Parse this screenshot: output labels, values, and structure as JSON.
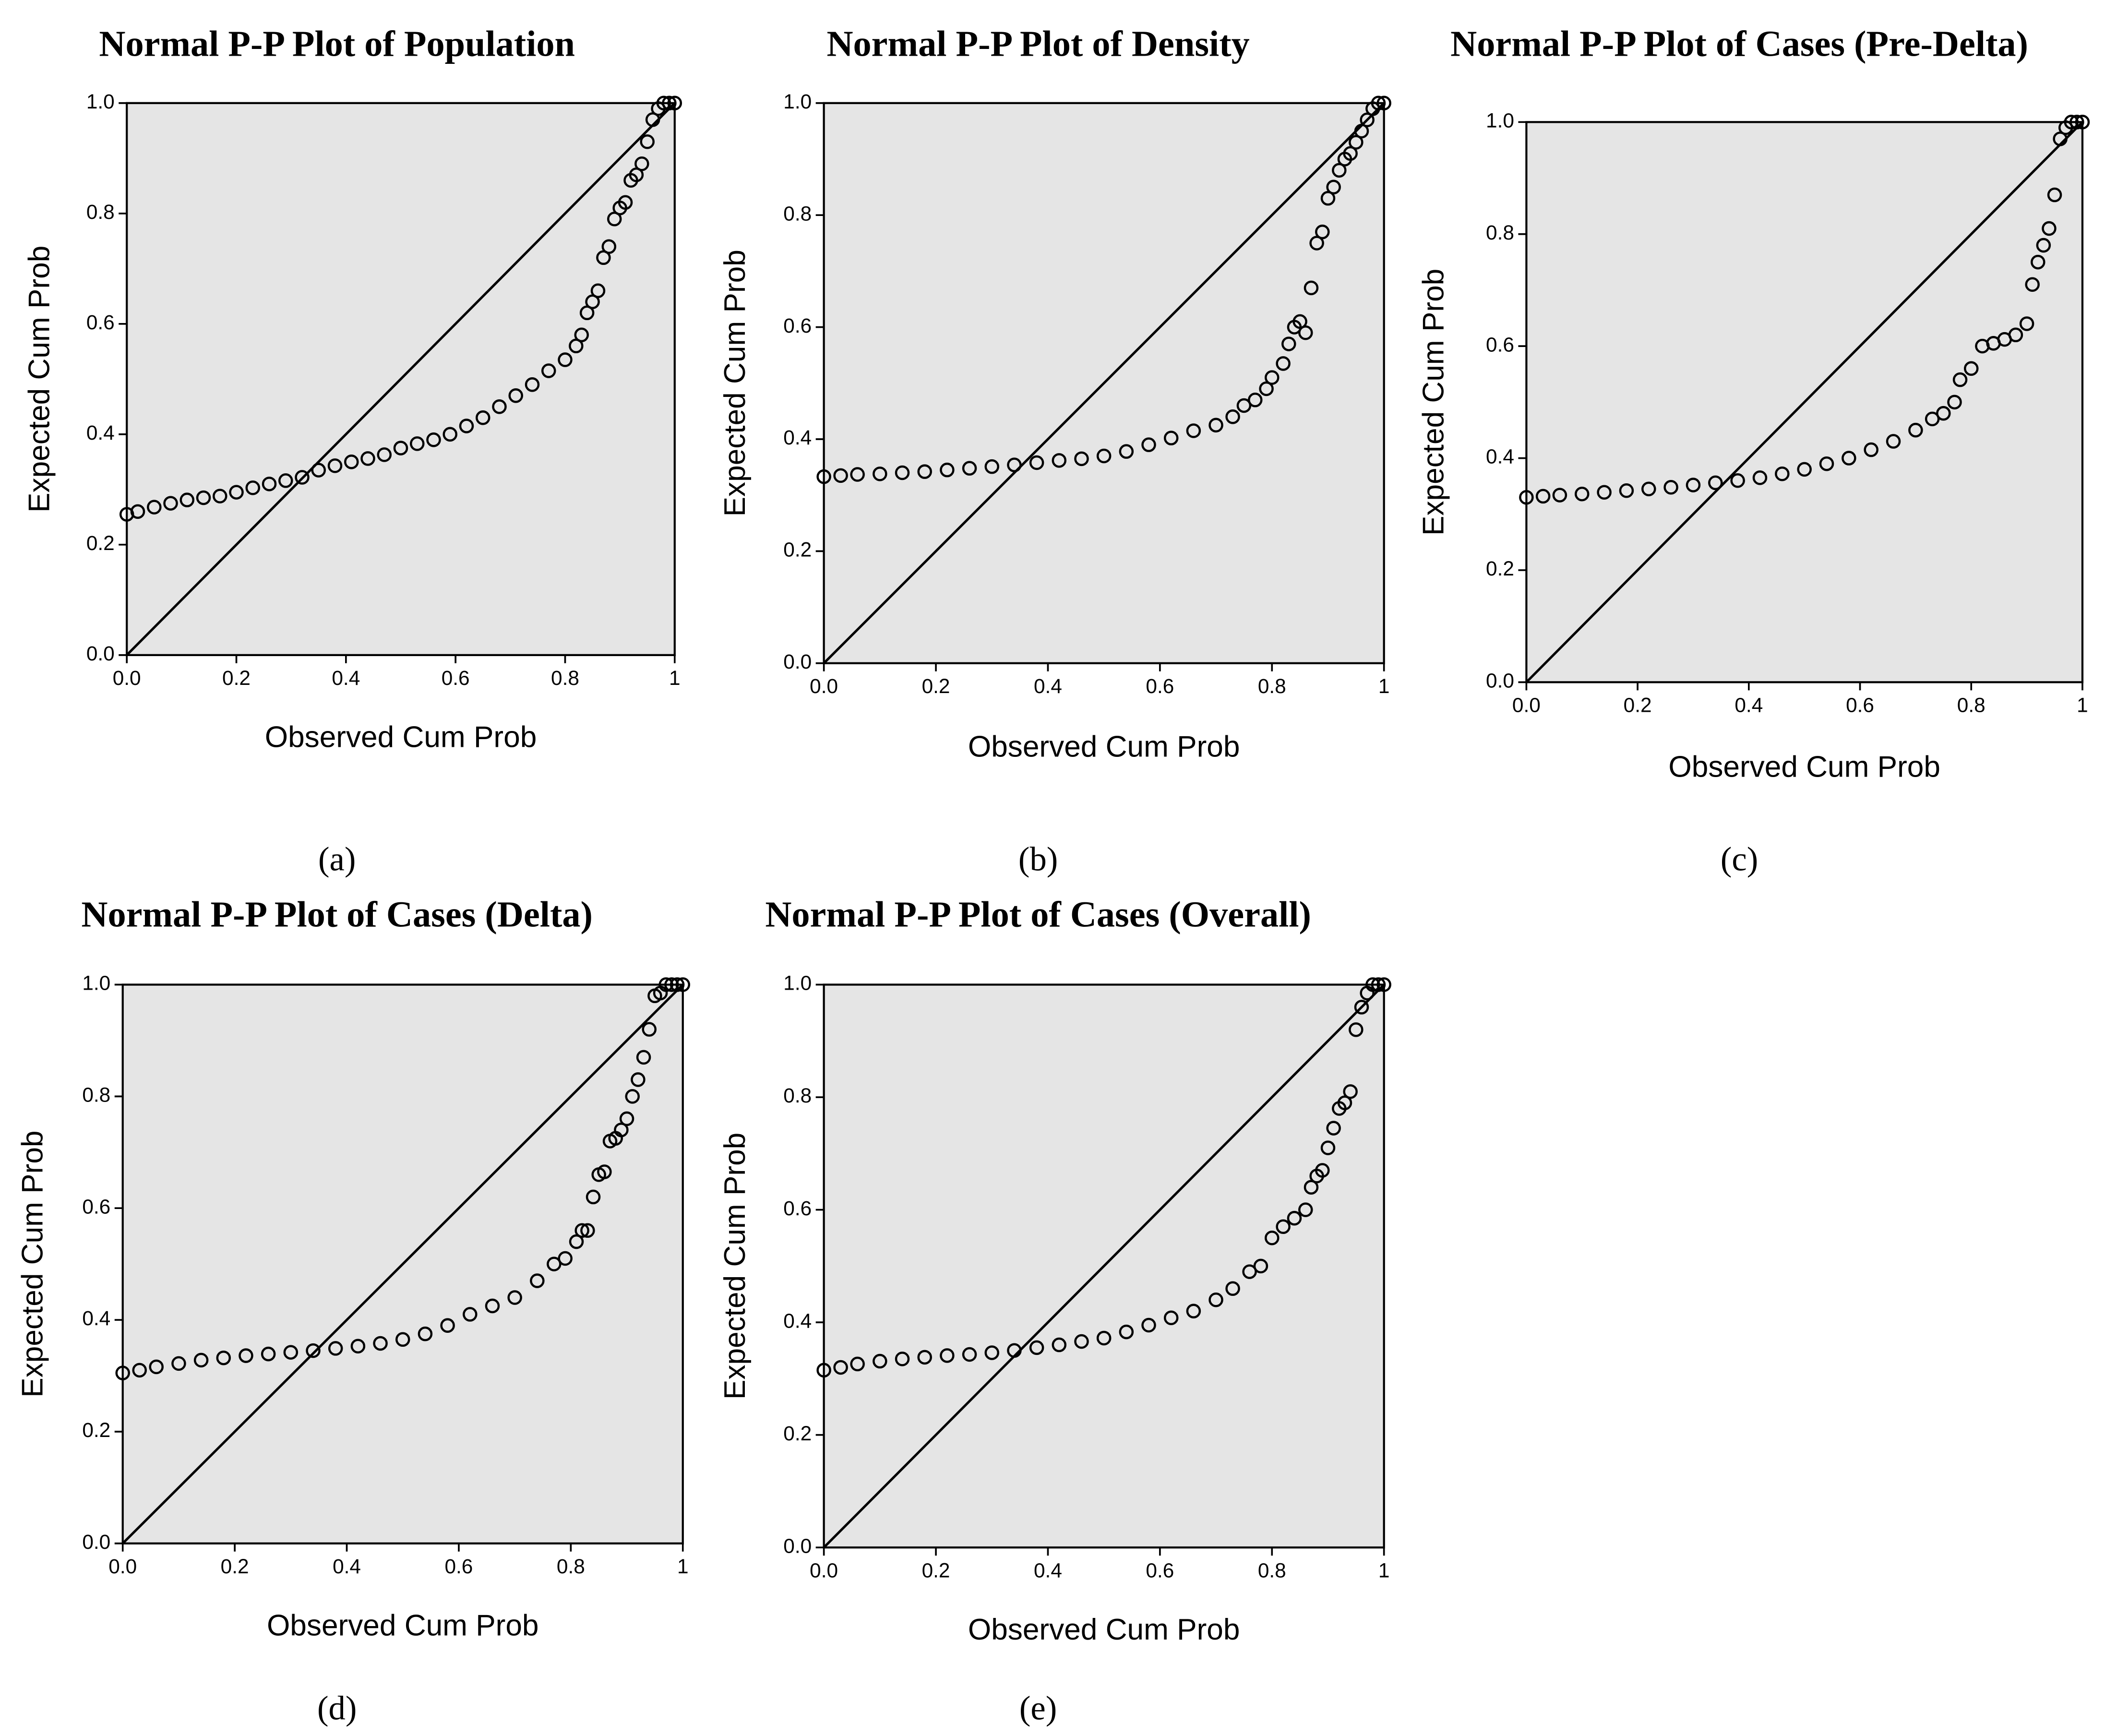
{
  "chart_data": [
    {
      "type": "scatter",
      "title": "Normal P-P Plot of Population",
      "caption": "(a)",
      "xlabel": "Observed Cum Prob",
      "ylabel": "Expected Cum Prob",
      "x": [
        0,
        0.02,
        0.05,
        0.08,
        0.11,
        0.14,
        0.17,
        0.2,
        0.23,
        0.26,
        0.29,
        0.32,
        0.35,
        0.38,
        0.41,
        0.44,
        0.47,
        0.5,
        0.53,
        0.56,
        0.59,
        0.62,
        0.65,
        0.68,
        0.71,
        0.74,
        0.77,
        0.8,
        0.82,
        0.83,
        0.84,
        0.85,
        0.86,
        0.87,
        0.88,
        0.89,
        0.9,
        0.91,
        0.92,
        0.93,
        0.94,
        0.95,
        0.96,
        0.97,
        0.98,
        0.99,
        1
      ],
      "values": [
        0.255,
        0.26,
        0.268,
        0.275,
        0.281,
        0.285,
        0.288,
        0.295,
        0.303,
        0.31,
        0.316,
        0.322,
        0.335,
        0.343,
        0.35,
        0.356,
        0.363,
        0.375,
        0.383,
        0.39,
        0.4,
        0.415,
        0.43,
        0.45,
        0.47,
        0.49,
        0.515,
        0.535,
        0.56,
        0.58,
        0.62,
        0.64,
        0.66,
        0.72,
        0.74,
        0.79,
        0.81,
        0.82,
        0.86,
        0.87,
        0.89,
        0.93,
        0.97,
        0.99,
        1.0,
        1.0,
        1.0
      ],
      "xlim": [
        0,
        1
      ],
      "ylim": [
        0,
        1
      ],
      "xticks": [
        {
          "value": 0,
          "label": "0.0"
        },
        0.2,
        0.4,
        0.6,
        0.8,
        1
      ],
      "yticks": [
        {
          "value": 0,
          "label": "0.0"
        },
        0.2,
        0.4,
        0.6,
        0.8,
        {
          "value": 1,
          "label": "1.0"
        }
      ],
      "color": "#000000",
      "background": "#e5e5e5"
    },
    {
      "type": "scatter",
      "title": "Normal P-P Plot of Density",
      "caption": "(b)",
      "xlabel": "Observed Cum Prob",
      "ylabel": "Expected Cum Prob",
      "x": [
        0,
        0.03,
        0.06,
        0.1,
        0.14,
        0.18,
        0.22,
        0.26,
        0.3,
        0.34,
        0.38,
        0.42,
        0.46,
        0.5,
        0.54,
        0.58,
        0.62,
        0.66,
        0.7,
        0.73,
        0.75,
        0.77,
        0.79,
        0.8,
        0.82,
        0.83,
        0.84,
        0.85,
        0.86,
        0.87,
        0.88,
        0.89,
        0.9,
        0.91,
        0.92,
        0.93,
        0.94,
        0.95,
        0.96,
        0.97,
        0.98,
        0.99,
        1
      ],
      "values": [
        0.333,
        0.335,
        0.337,
        0.338,
        0.34,
        0.342,
        0.345,
        0.348,
        0.351,
        0.354,
        0.358,
        0.362,
        0.365,
        0.37,
        0.378,
        0.39,
        0.402,
        0.415,
        0.425,
        0.44,
        0.46,
        0.47,
        0.49,
        0.51,
        0.535,
        0.57,
        0.6,
        0.61,
        0.59,
        0.67,
        0.75,
        0.77,
        0.83,
        0.85,
        0.88,
        0.9,
        0.91,
        0.93,
        0.95,
        0.97,
        0.99,
        1.0,
        1.0
      ],
      "xlim": [
        0,
        1
      ],
      "ylim": [
        0,
        1
      ],
      "xticks": [
        {
          "value": 0,
          "label": "0.0"
        },
        0.2,
        0.4,
        0.6,
        0.8,
        1
      ],
      "yticks": [
        {
          "value": 0,
          "label": "0.0"
        },
        0.2,
        0.4,
        0.6,
        0.8,
        {
          "value": 1,
          "label": "1.0"
        }
      ],
      "color": "#000000",
      "background": "#e5e5e5"
    },
    {
      "type": "scatter",
      "title": "Normal P-P Plot of Cases (Pre-Delta)",
      "caption": "(c)",
      "xlabel": "Observed Cum Prob",
      "ylabel": "Expected Cum Prob",
      "x": [
        0,
        0.03,
        0.06,
        0.1,
        0.14,
        0.18,
        0.22,
        0.26,
        0.3,
        0.34,
        0.38,
        0.42,
        0.46,
        0.5,
        0.54,
        0.58,
        0.62,
        0.66,
        0.7,
        0.73,
        0.75,
        0.77,
        0.78,
        0.8,
        0.82,
        0.84,
        0.86,
        0.88,
        0.9,
        0.91,
        0.92,
        0.93,
        0.94,
        0.95,
        0.96,
        0.97,
        0.98,
        0.99,
        1
      ],
      "values": [
        0.33,
        0.332,
        0.334,
        0.336,
        0.339,
        0.342,
        0.345,
        0.348,
        0.352,
        0.356,
        0.36,
        0.365,
        0.372,
        0.38,
        0.39,
        0.4,
        0.415,
        0.43,
        0.45,
        0.47,
        0.48,
        0.5,
        0.54,
        0.56,
        0.6,
        0.605,
        0.612,
        0.62,
        0.64,
        0.71,
        0.75,
        0.78,
        0.81,
        0.87,
        0.97,
        0.99,
        1.0,
        1.0,
        1.0
      ],
      "xlim": [
        0,
        1
      ],
      "ylim": [
        0,
        1
      ],
      "xticks": [
        {
          "value": 0,
          "label": "0.0"
        },
        0.2,
        0.4,
        0.6,
        0.8,
        1
      ],
      "yticks": [
        {
          "value": 0,
          "label": "0.0"
        },
        0.2,
        0.4,
        0.6,
        0.8,
        {
          "value": 1,
          "label": "1.0"
        }
      ],
      "color": "#000000",
      "background": "#e5e5e5"
    },
    {
      "type": "scatter",
      "title": "Normal P-P Plot of Cases (Delta)",
      "caption": "(d)",
      "xlabel": "Observed Cum Prob",
      "ylabel": "Expected Cum Prob",
      "x": [
        0,
        0.03,
        0.06,
        0.1,
        0.14,
        0.18,
        0.22,
        0.26,
        0.3,
        0.34,
        0.38,
        0.42,
        0.46,
        0.5,
        0.54,
        0.58,
        0.62,
        0.66,
        0.7,
        0.74,
        0.77,
        0.79,
        0.81,
        0.82,
        0.83,
        0.84,
        0.85,
        0.86,
        0.87,
        0.88,
        0.89,
        0.9,
        0.91,
        0.92,
        0.93,
        0.94,
        0.95,
        0.96,
        0.97,
        0.98,
        0.99,
        1
      ],
      "values": [
        0.305,
        0.31,
        0.316,
        0.322,
        0.328,
        0.332,
        0.336,
        0.339,
        0.342,
        0.345,
        0.349,
        0.353,
        0.358,
        0.365,
        0.375,
        0.39,
        0.41,
        0.425,
        0.44,
        0.47,
        0.5,
        0.51,
        0.54,
        0.56,
        0.56,
        0.62,
        0.66,
        0.665,
        0.72,
        0.725,
        0.74,
        0.76,
        0.8,
        0.83,
        0.87,
        0.92,
        0.98,
        0.985,
        1.0,
        1.0,
        1.0,
        1.0
      ],
      "xlim": [
        0,
        1
      ],
      "ylim": [
        0,
        1
      ],
      "xticks": [
        {
          "value": 0,
          "label": "0.0"
        },
        0.2,
        0.4,
        0.6,
        0.8,
        1
      ],
      "yticks": [
        {
          "value": 0,
          "label": "0.0"
        },
        0.2,
        0.4,
        0.6,
        0.8,
        {
          "value": 1,
          "label": "1.0"
        }
      ],
      "color": "#000000",
      "background": "#e5e5e5"
    },
    {
      "type": "scatter",
      "title": "Normal P-P Plot of Cases (Overall)",
      "caption": "(e)",
      "xlabel": "Observed Cum Prob",
      "ylabel": "Expected Cum Prob",
      "x": [
        0,
        0.03,
        0.06,
        0.1,
        0.14,
        0.18,
        0.22,
        0.26,
        0.3,
        0.34,
        0.38,
        0.42,
        0.46,
        0.5,
        0.54,
        0.58,
        0.62,
        0.66,
        0.7,
        0.73,
        0.76,
        0.78,
        0.8,
        0.82,
        0.84,
        0.86,
        0.87,
        0.88,
        0.89,
        0.9,
        0.91,
        0.92,
        0.93,
        0.94,
        0.95,
        0.96,
        0.97,
        0.98,
        0.99,
        1
      ],
      "values": [
        0.315,
        0.32,
        0.326,
        0.331,
        0.335,
        0.338,
        0.341,
        0.343,
        0.346,
        0.35,
        0.355,
        0.36,
        0.366,
        0.372,
        0.383,
        0.395,
        0.408,
        0.42,
        0.44,
        0.46,
        0.49,
        0.5,
        0.55,
        0.57,
        0.585,
        0.6,
        0.64,
        0.66,
        0.67,
        0.71,
        0.745,
        0.78,
        0.79,
        0.81,
        0.92,
        0.96,
        0.985,
        1.0,
        1.0,
        1.0
      ],
      "xlim": [
        0,
        1
      ],
      "ylim": [
        0,
        1
      ],
      "xticks": [
        {
          "value": 0,
          "label": "0.0"
        },
        0.2,
        0.4,
        0.6,
        0.8,
        1
      ],
      "yticks": [
        {
          "value": 0,
          "label": "0.0"
        },
        0.2,
        0.4,
        0.6,
        0.8,
        {
          "value": 1,
          "label": "1.0"
        }
      ],
      "color": "#000000",
      "background": "#e5e5e5"
    }
  ]
}
